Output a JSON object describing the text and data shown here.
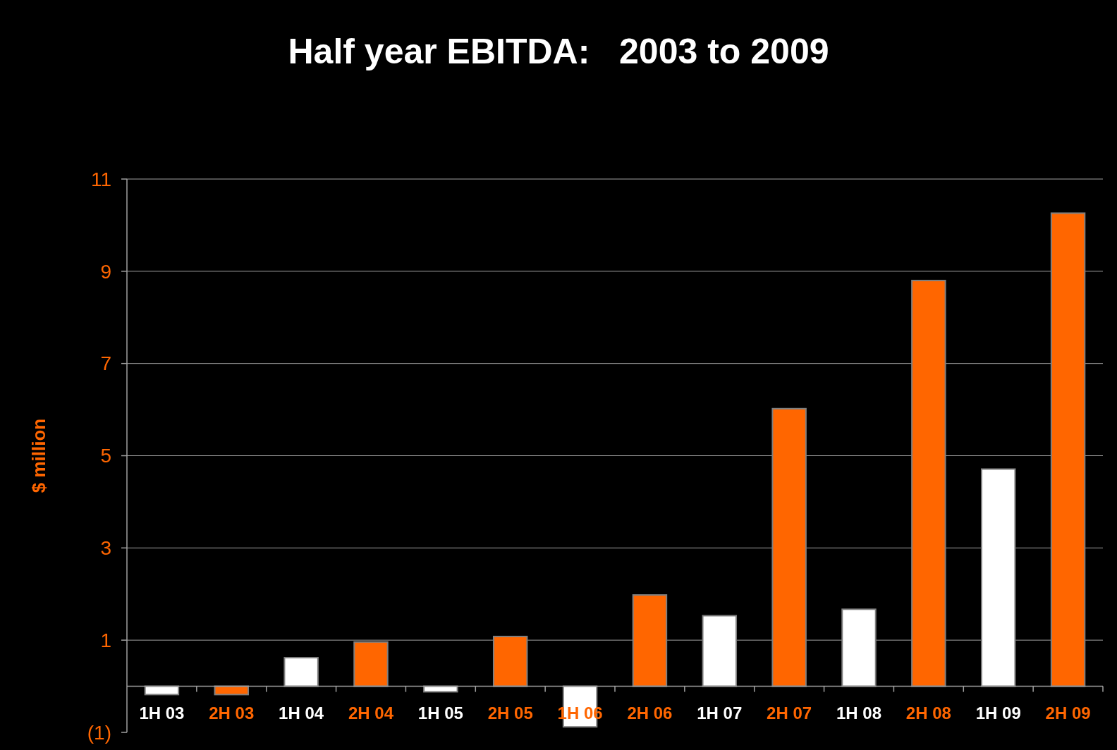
{
  "chart_data": {
    "type": "bar",
    "title": "Half year EBITDA:   2003 to 2009",
    "ylabel": "$ million",
    "categories": [
      "1H 03",
      "2H 03",
      "1H 04",
      "2H 04",
      "1H 05",
      "2H 05",
      "1H 06",
      "2H 06",
      "1H 07",
      "2H 07",
      "1H 08",
      "2H 08",
      "1H 09",
      "2H 09"
    ],
    "values": [
      -0.18,
      -0.18,
      0.62,
      0.96,
      -0.12,
      1.08,
      -0.88,
      1.98,
      1.53,
      6.02,
      1.67,
      8.8,
      4.71,
      10.26
    ],
    "colors": [
      "#ffffff",
      "#ff6600",
      "#ffffff",
      "#ff6600",
      "#ffffff",
      "#ff6600",
      "#ffffff",
      "#ff6600",
      "#ffffff",
      "#ff6600",
      "#ffffff",
      "#ff6600",
      "#ffffff",
      "#ff6600"
    ],
    "ylim": [
      -1,
      11
    ],
    "yticks": [
      {
        "value": -1,
        "label": "(1)"
      },
      1,
      3,
      5,
      7,
      9,
      11
    ],
    "grid": "y"
  }
}
